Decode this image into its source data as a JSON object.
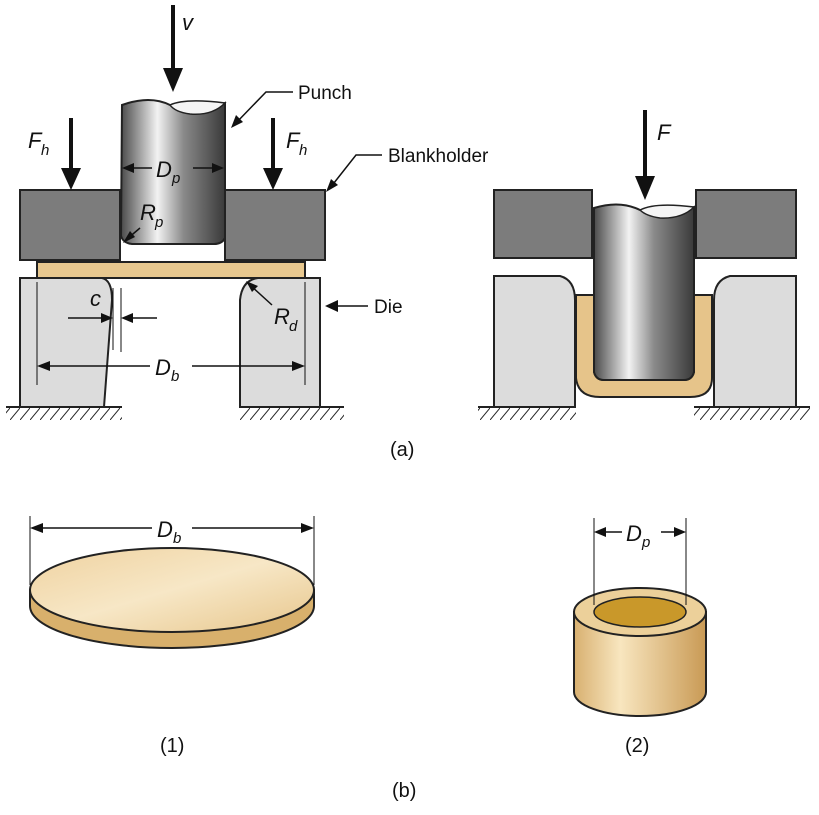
{
  "diagram": {
    "labels": {
      "velocity": "v",
      "punch": "Punch",
      "blankholder": "Blankholder",
      "die": "Die",
      "holding_force": "F",
      "holding_force_sub": "h",
      "punch_force": "F",
      "clearance": "c",
      "diameter": "D",
      "sub_p": "p",
      "sub_b": "b",
      "radius": "R",
      "sub_d": "d"
    },
    "captions": {
      "a": "(a)",
      "b": "(b)",
      "b1": "(1)",
      "b2": "(2)"
    }
  }
}
